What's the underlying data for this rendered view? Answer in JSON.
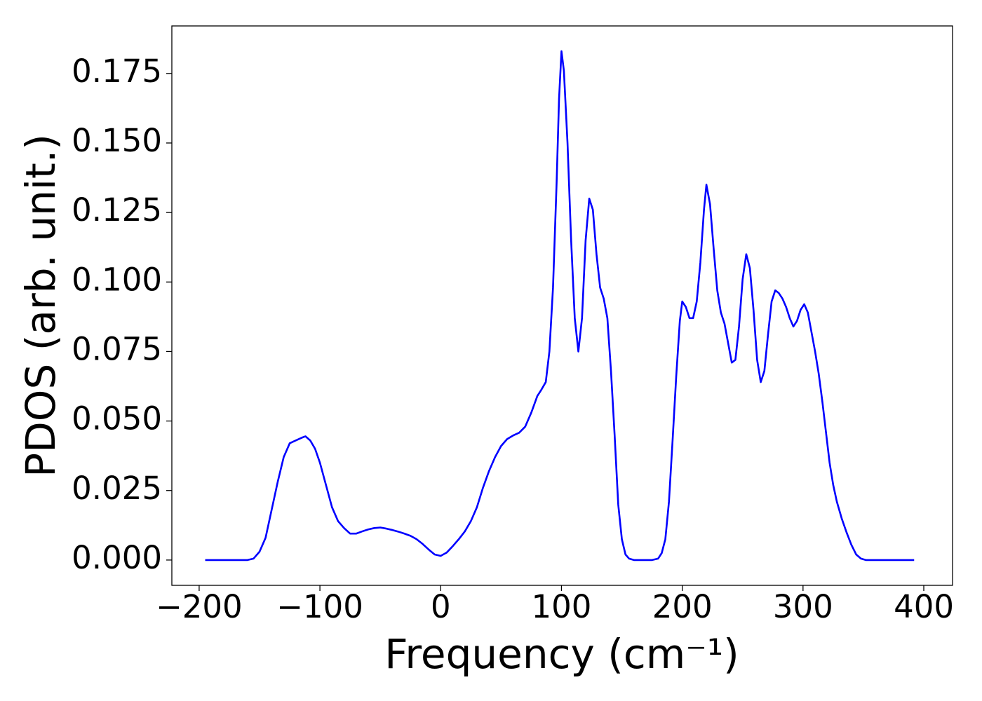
{
  "chart_data": {
    "type": "line",
    "xlabel": "Frequency (cm⁻¹)",
    "ylabel": "PDOS (arb. unit.)",
    "x": [
      -195,
      -160,
      -155,
      -150,
      -145,
      -140,
      -135,
      -130,
      -125,
      -120,
      -115,
      -112,
      -108,
      -104,
      -100,
      -95,
      -90,
      -85,
      -80,
      -75,
      -70,
      -65,
      -60,
      -55,
      -50,
      -45,
      -40,
      -35,
      -30,
      -25,
      -20,
      -15,
      -10,
      -5,
      0,
      5,
      10,
      15,
      20,
      25,
      30,
      35,
      40,
      45,
      50,
      55,
      60,
      65,
      70,
      75,
      80,
      83,
      87,
      90,
      93,
      96,
      98,
      100,
      102,
      105,
      108,
      111,
      114,
      117,
      120,
      123,
      126,
      129,
      132,
      135,
      138,
      141,
      144,
      147,
      150,
      153,
      156,
      160,
      175,
      180,
      183,
      186,
      189,
      192,
      195,
      198,
      200,
      203,
      206,
      209,
      212,
      215,
      218,
      220,
      223,
      226,
      229,
      232,
      235,
      238,
      241,
      244,
      247,
      250,
      253,
      256,
      259,
      262,
      265,
      268,
      271,
      274,
      277,
      280,
      283,
      286,
      289,
      292,
      295,
      298,
      301,
      304,
      307,
      310,
      313,
      316,
      319,
      322,
      325,
      328,
      332,
      336,
      340,
      344,
      348,
      352,
      392
    ],
    "values": [
      0,
      0,
      0.0005,
      0.003,
      0.008,
      0.018,
      0.028,
      0.037,
      0.042,
      0.043,
      0.044,
      0.0445,
      0.043,
      0.04,
      0.035,
      0.027,
      0.019,
      0.014,
      0.0115,
      0.0095,
      0.0095,
      0.0103,
      0.011,
      0.0115,
      0.0117,
      0.0113,
      0.0108,
      0.0102,
      0.0095,
      0.0087,
      0.0075,
      0.0058,
      0.0038,
      0.002,
      0.0015,
      0.0027,
      0.005,
      0.0075,
      0.0103,
      0.014,
      0.019,
      0.026,
      0.032,
      0.037,
      0.041,
      0.0435,
      0.0448,
      0.0458,
      0.048,
      0.053,
      0.059,
      0.061,
      0.064,
      0.075,
      0.098,
      0.136,
      0.166,
      0.183,
      0.176,
      0.15,
      0.115,
      0.087,
      0.075,
      0.087,
      0.115,
      0.13,
      0.126,
      0.11,
      0.098,
      0.094,
      0.087,
      0.068,
      0.045,
      0.02,
      0.0075,
      0.002,
      0.0005,
      0,
      0,
      0.0005,
      0.0025,
      0.0075,
      0.021,
      0.043,
      0.066,
      0.086,
      0.093,
      0.091,
      0.087,
      0.087,
      0.093,
      0.107,
      0.126,
      0.135,
      0.128,
      0.112,
      0.097,
      0.089,
      0.085,
      0.078,
      0.071,
      0.072,
      0.084,
      0.101,
      0.11,
      0.105,
      0.09,
      0.072,
      0.064,
      0.068,
      0.081,
      0.093,
      0.097,
      0.096,
      0.094,
      0.091,
      0.087,
      0.084,
      0.086,
      0.09,
      0.092,
      0.089,
      0.082,
      0.075,
      0.067,
      0.057,
      0.046,
      0.035,
      0.027,
      0.021,
      0.015,
      0.01,
      0.0055,
      0.002,
      0.0005,
      0,
      0
    ],
    "color": "#0000ff",
    "xlim": [
      -222.6,
      423.8
    ],
    "ylim": [
      -0.0091,
      0.1921
    ],
    "xticks": [
      {
        "value": -200,
        "label": "−200"
      },
      {
        "value": -100,
        "label": "−100"
      },
      0,
      100,
      200,
      300,
      400
    ],
    "yticks": [
      {
        "value": 0,
        "label": "0.000"
      },
      {
        "value": 0.025,
        "label": "0.025"
      },
      {
        "value": 0.05,
        "label": "0.050"
      },
      {
        "value": 0.075,
        "label": "0.075"
      },
      {
        "value": 0.1,
        "label": "0.100"
      },
      {
        "value": 0.125,
        "label": "0.125"
      },
      {
        "value": 0.15,
        "label": "0.150"
      },
      {
        "value": 0.175,
        "label": "0.175"
      }
    ]
  }
}
